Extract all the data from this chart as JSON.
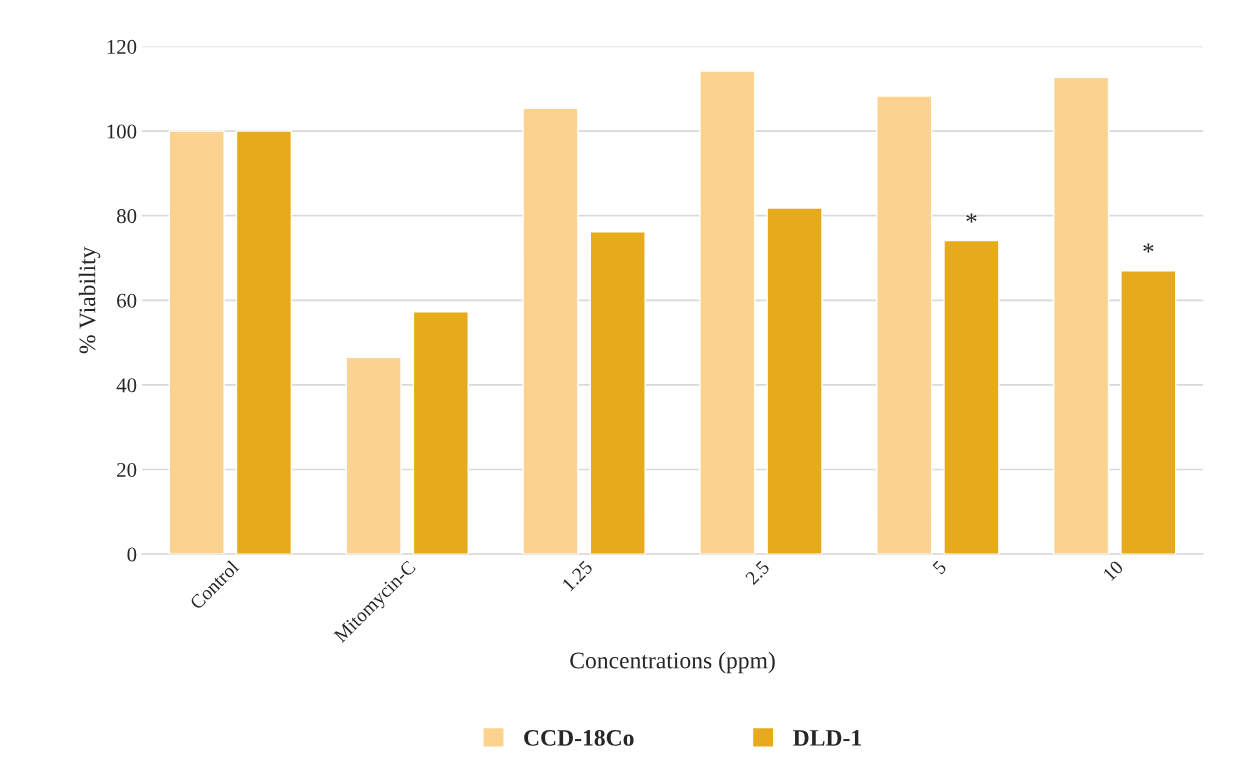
{
  "chart_data": {
    "type": "bar",
    "xlabel": "Concentrations (ppm)",
    "ylabel": "% Viability",
    "categories": [
      "Control",
      "Mitomycin-C",
      "1.25",
      "2.5",
      "5",
      "10"
    ],
    "series": [
      {
        "name": "CCD-18Co",
        "color": "#fbd38f",
        "values": [
          100,
          46.5,
          105.4,
          114.2,
          108.3,
          112.7
        ]
      },
      {
        "name": "DLD-1",
        "color": "#e6aa1c",
        "values": [
          100,
          57.3,
          76.2,
          81.8,
          74.1,
          67.0
        ]
      }
    ],
    "annotations": [
      {
        "text": "*",
        "x": "5",
        "y": 74.1
      },
      {
        "text": "*",
        "x": "10",
        "y": 67.0
      }
    ],
    "ylim": [
      0,
      120
    ],
    "yticks": [
      0,
      20,
      40,
      60,
      80,
      100,
      120
    ],
    "grid": "y",
    "legend": "bottom"
  }
}
